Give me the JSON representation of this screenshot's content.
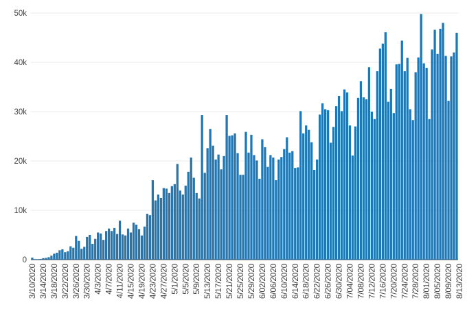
{
  "chart_data": {
    "type": "bar",
    "title": "",
    "xlabel": "",
    "ylabel": "",
    "ylim": [
      0,
      50000
    ],
    "yticks": [
      0,
      10000,
      20000,
      30000,
      40000,
      50000
    ],
    "yticklabels": [
      "0",
      "10k",
      "20k",
      "30k",
      "40k",
      "50k"
    ],
    "xticklabels": [
      "3/10/2020",
      "3/14/2020",
      "3/18/2020",
      "3/22/2020",
      "3/26/2020",
      "3/30/2020",
      "4/3/2020",
      "4/7/2020",
      "4/11/2020",
      "4/15/2020",
      "4/19/2020",
      "4/23/2020",
      "4/27/2020",
      "5/1/2020",
      "5/5/2020",
      "5/9/2020",
      "5/13/2020",
      "5/17/2020",
      "5/21/2020",
      "5/25/2020",
      "5/29/2020",
      "6/02/2020",
      "6/06/2020",
      "6/10/2020",
      "6/14/2020",
      "6/18/2020",
      "6/22/2020",
      "6/26/2020",
      "6/30/2020",
      "7/04/2020",
      "7/08/2020",
      "7/12/2020",
      "7/16/2020",
      "7/20/2020",
      "7/24/2020",
      "7/28/2020",
      "8/01/2020",
      "8/05/2020",
      "8/09/2020",
      "8/13/2020"
    ],
    "start_date": "2020-03-10",
    "x_tick_every_days": 4,
    "bar_color": "#1f77b4",
    "grid": true,
    "values": [
      400,
      100,
      100,
      150,
      300,
      350,
      500,
      800,
      1200,
      1400,
      1900,
      2100,
      1500,
      1700,
      2700,
      2400,
      4800,
      3800,
      2200,
      2600,
      4600,
      5000,
      3200,
      4200,
      5500,
      5300,
      4000,
      5800,
      6300,
      5800,
      6400,
      5200,
      7900,
      5100,
      4900,
      6300,
      5500,
      7500,
      7100,
      6200,
      4900,
      6700,
      9300,
      9000,
      16100,
      12000,
      13200,
      12500,
      14500,
      14400,
      13500,
      14900,
      15300,
      19400,
      14000,
      13200,
      15000,
      17800,
      20700,
      16600,
      13500,
      12400,
      29300,
      17600,
      22600,
      26500,
      23100,
      20300,
      21300,
      18300,
      21000,
      29300,
      25100,
      25200,
      25600,
      21600,
      17200,
      17200,
      25900,
      21700,
      25300,
      21200,
      20100,
      16400,
      24400,
      22800,
      18800,
      21200,
      20700,
      16100,
      20300,
      20800,
      22400,
      24800,
      21700,
      22000,
      18600,
      18700,
      30100,
      25600,
      27200,
      26300,
      23800,
      18200,
      20300,
      29400,
      31700,
      30500,
      30300,
      23700,
      26900,
      31100,
      33200,
      30100,
      34500,
      33900,
      27200,
      21100,
      27000,
      32800,
      36200,
      32900,
      32500,
      39000,
      30000,
      28500,
      38200,
      42800,
      43800,
      46100,
      32000,
      34600,
      29700,
      39600,
      39700,
      44400,
      38200,
      40900,
      30500,
      28300,
      38000,
      41000,
      49800,
      39800,
      38900,
      28500,
      42600,
      46600,
      41700,
      46800,
      48000,
      41300,
      32200,
      41200,
      42000,
      46000
    ]
  }
}
